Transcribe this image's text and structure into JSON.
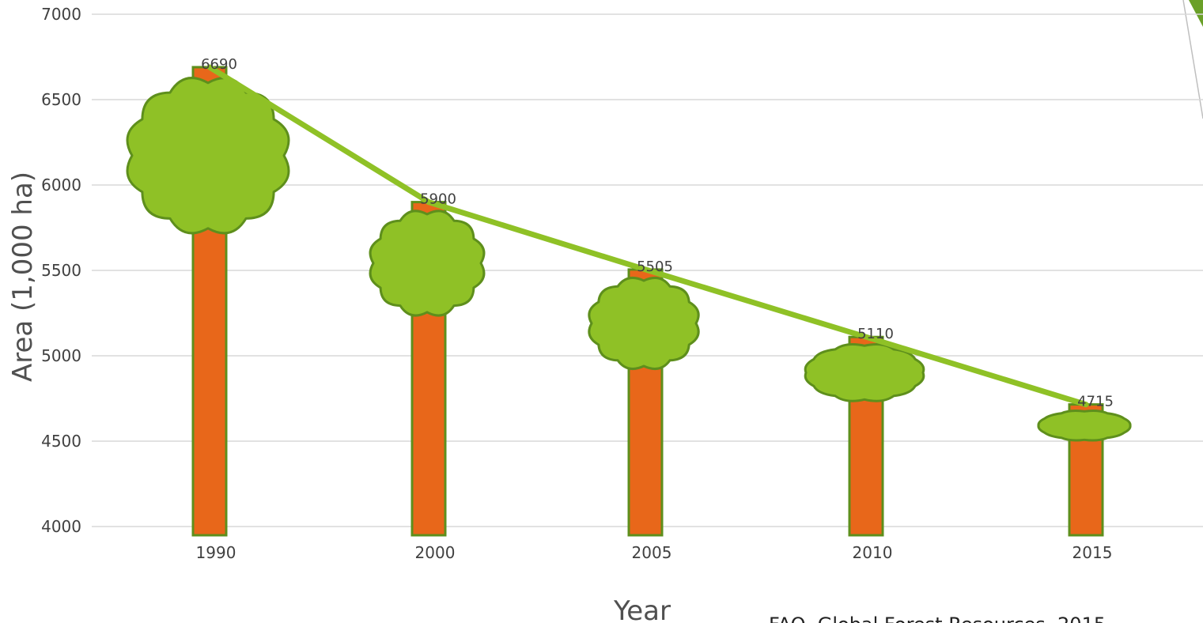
{
  "chart_data": {
    "type": "bar",
    "categories": [
      "1990",
      "2000",
      "2005",
      "2010",
      "2015"
    ],
    "values": [
      6690,
      5900,
      5505,
      5110,
      4715
    ],
    "data_labels": [
      "6690",
      "5900",
      "5505",
      "5110",
      "4715"
    ],
    "line_overlay": true,
    "title": "",
    "xlabel": "Year",
    "ylabel": "Area (1,000 ha)",
    "ylim": [
      4000,
      7000
    ],
    "yticks": [
      "4000",
      "4500",
      "5000",
      "5500",
      "6000",
      "6500",
      "7000"
    ],
    "grid": true,
    "legend": "none",
    "source": "FAO, Global Forest Resources, 2015",
    "colors": {
      "trunk": "#E8671A",
      "crown": "#8FC126",
      "outline": "#5E8F1C",
      "line": "#8FC126",
      "grid": "#D9D9D9"
    }
  }
}
